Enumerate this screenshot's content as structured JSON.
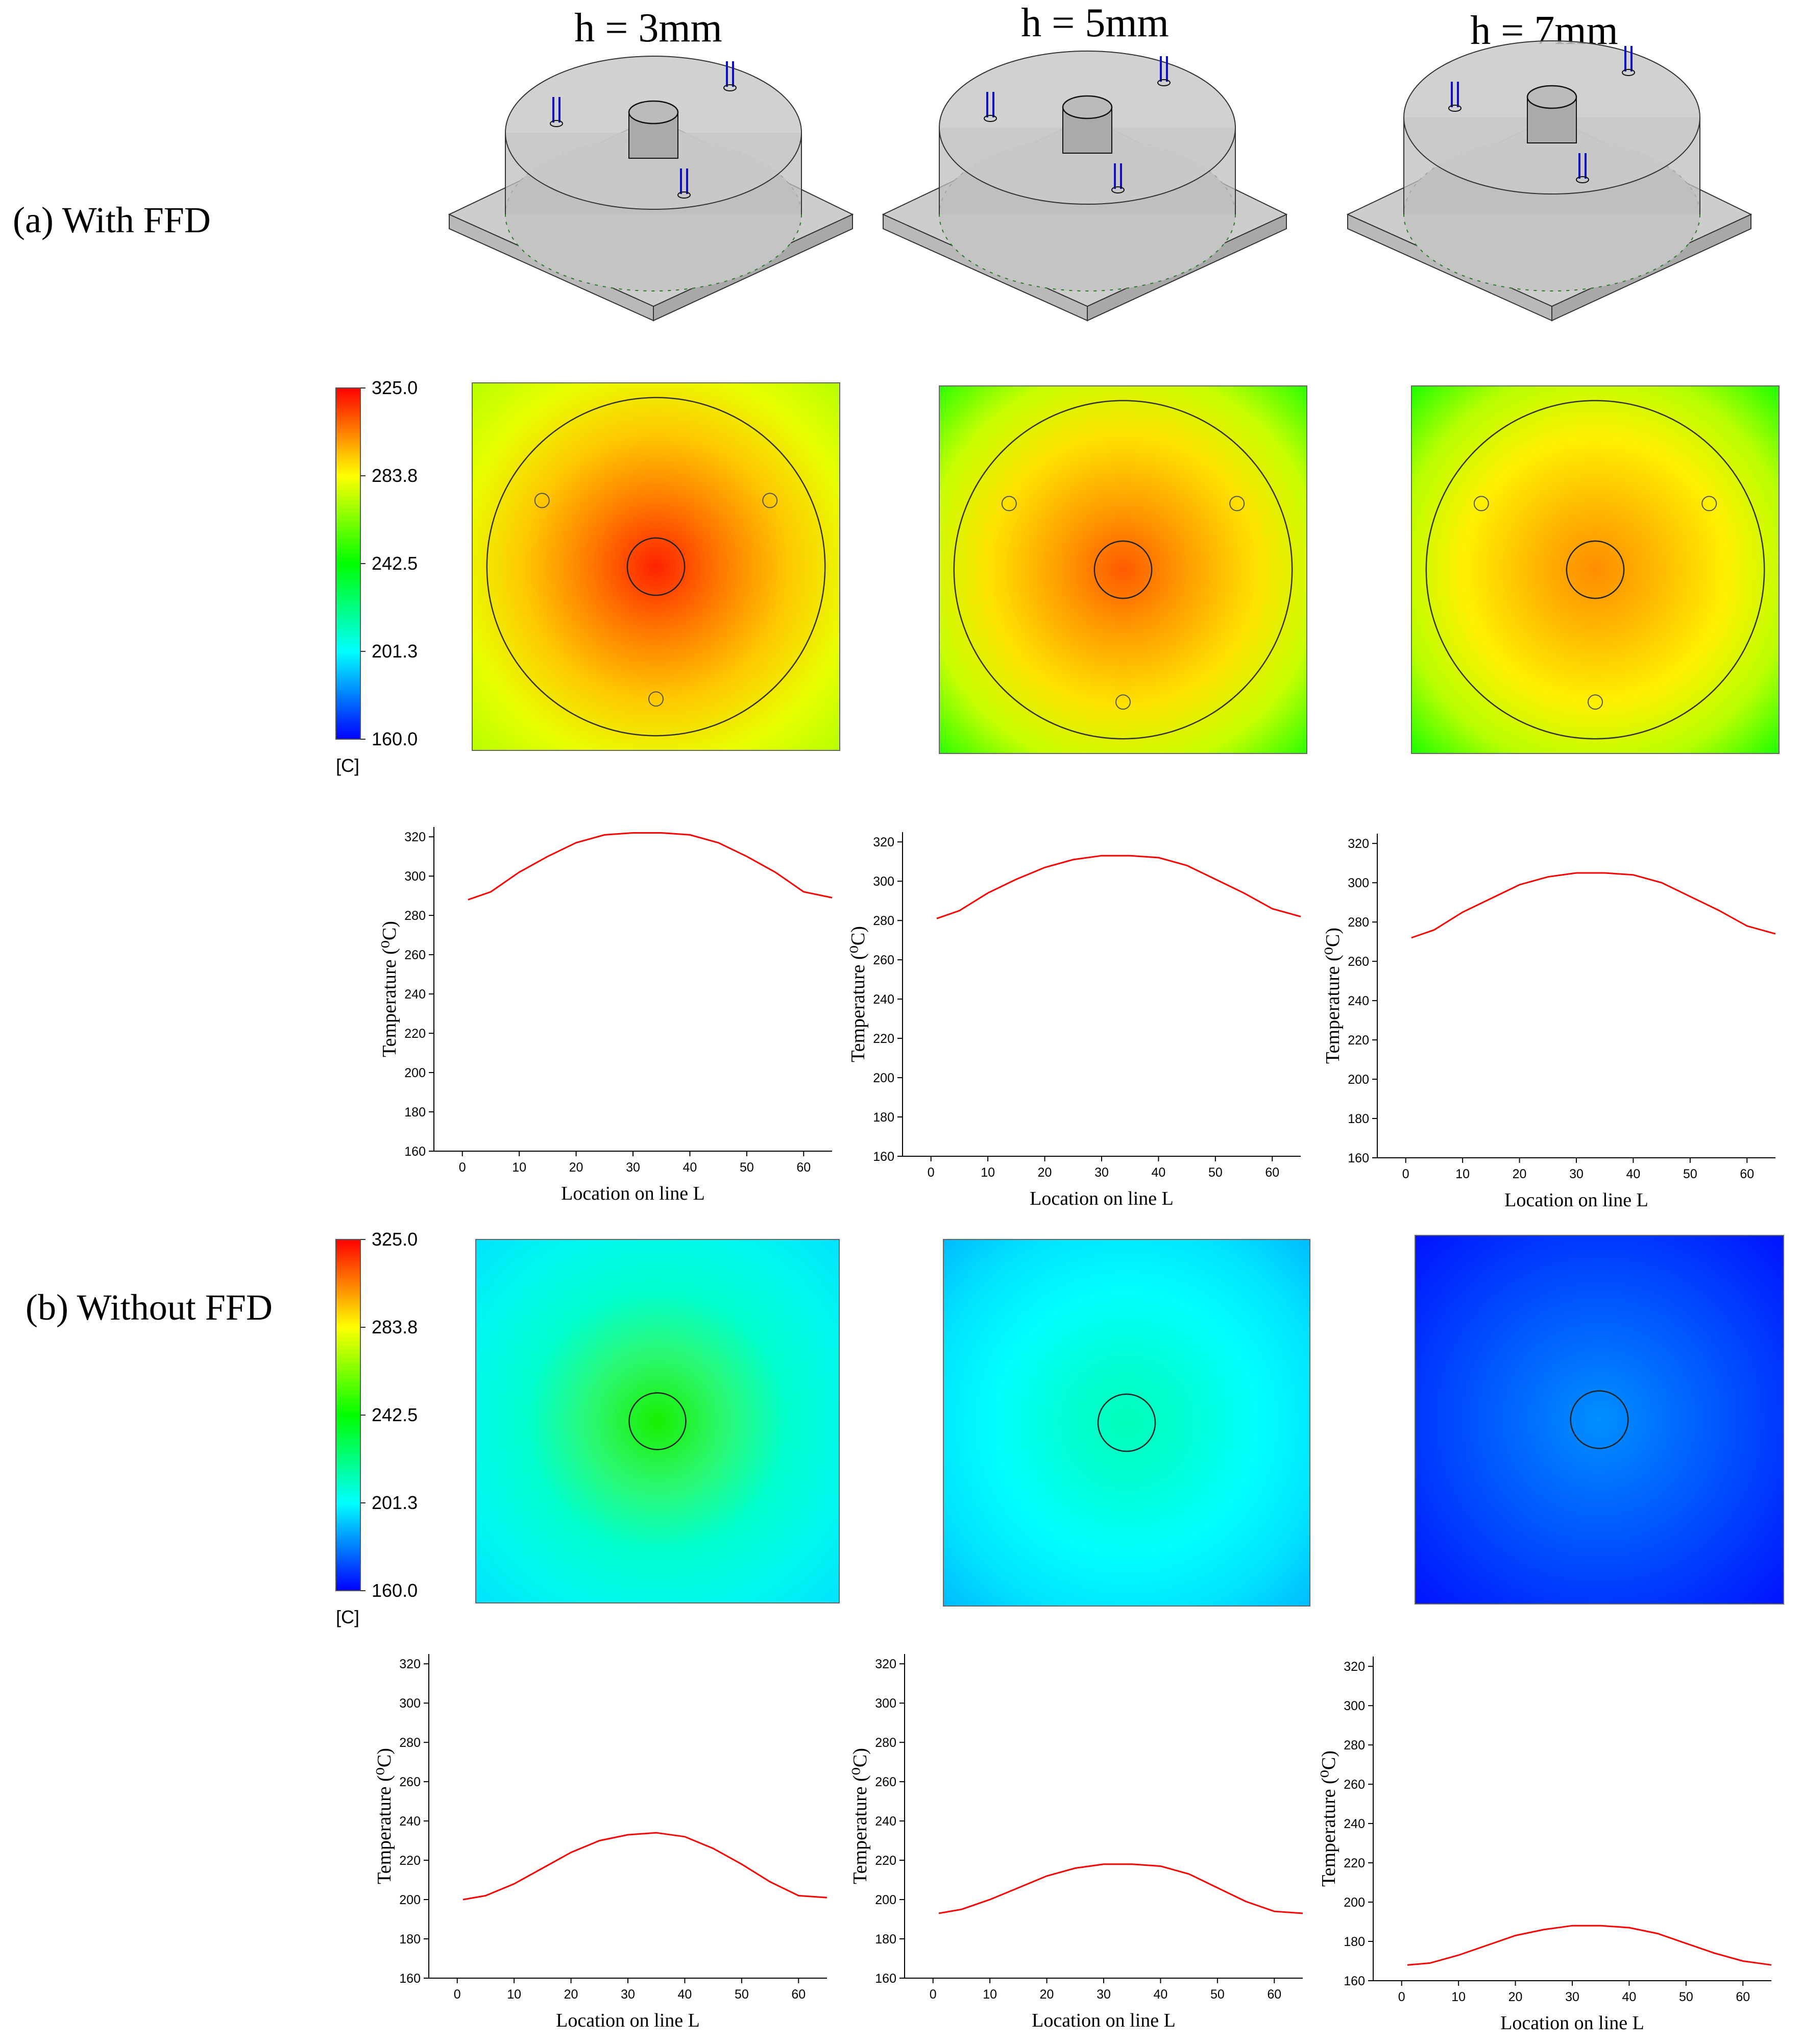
{
  "headers": {
    "col1": "h = 3mm",
    "col2": "h = 5mm",
    "col3": "h = 7mm",
    "row_a": "(a) With FFD",
    "row_b": "(b) Without FFD"
  },
  "colorbar": {
    "ticks": [
      "325.0",
      "283.8",
      "242.5",
      "201.3",
      "160.0"
    ],
    "unit": "[C]",
    "range": [
      160.0,
      325.0
    ]
  },
  "chart_data": [
    {
      "type": "line",
      "group": "With FFD",
      "h": "3mm",
      "xlabel": "Location on line L",
      "ylabel": "Temperature (⁰C)",
      "xlim": [
        -5,
        65
      ],
      "ylim": [
        160,
        325
      ],
      "xticks": [
        "0",
        "10",
        "20",
        "30",
        "40",
        "50",
        "60"
      ],
      "yticks": [
        "160",
        "180",
        "200",
        "220",
        "240",
        "260",
        "280",
        "300",
        "320"
      ],
      "x": [
        1,
        5,
        10,
        15,
        20,
        25,
        30,
        35,
        40,
        45,
        50,
        55,
        60,
        65
      ],
      "y": [
        288,
        292,
        302,
        310,
        317,
        321,
        322,
        322,
        321,
        317,
        310,
        302,
        292,
        289
      ],
      "color": "#ff0000"
    },
    {
      "type": "line",
      "group": "With FFD",
      "h": "5mm",
      "xlabel": "Location on line L",
      "ylabel": "Temperature (⁰C)",
      "xlim": [
        -5,
        65
      ],
      "ylim": [
        160,
        325
      ],
      "xticks": [
        "0",
        "10",
        "20",
        "30",
        "40",
        "50",
        "60"
      ],
      "yticks": [
        "160",
        "180",
        "200",
        "220",
        "240",
        "260",
        "280",
        "300",
        "320"
      ],
      "x": [
        1,
        5,
        10,
        15,
        20,
        25,
        30,
        35,
        40,
        45,
        50,
        55,
        60,
        65
      ],
      "y": [
        281,
        285,
        294,
        301,
        307,
        311,
        313,
        313,
        312,
        308,
        301,
        294,
        286,
        282
      ],
      "color": "#ff0000"
    },
    {
      "type": "line",
      "group": "With FFD",
      "h": "7mm",
      "xlabel": "Location on line L",
      "ylabel": "Temperature (⁰C)",
      "xlim": [
        -5,
        65
      ],
      "ylim": [
        160,
        325
      ],
      "xticks": [
        "0",
        "10",
        "20",
        "30",
        "40",
        "50",
        "60"
      ],
      "yticks": [
        "160",
        "180",
        "200",
        "220",
        "240",
        "260",
        "280",
        "300",
        "320"
      ],
      "x": [
        1,
        5,
        10,
        15,
        20,
        25,
        30,
        35,
        40,
        45,
        50,
        55,
        60,
        65
      ],
      "y": [
        272,
        276,
        285,
        292,
        299,
        303,
        305,
        305,
        304,
        300,
        293,
        286,
        278,
        274
      ],
      "color": "#ff0000"
    },
    {
      "type": "line",
      "group": "Without FFD",
      "h": "3mm",
      "xlabel": "Location on line L",
      "ylabel": "Temperature (⁰C)",
      "xlim": [
        -5,
        65
      ],
      "ylim": [
        160,
        325
      ],
      "xticks": [
        "0",
        "10",
        "20",
        "30",
        "40",
        "50",
        "60"
      ],
      "yticks": [
        "160",
        "180",
        "200",
        "220",
        "240",
        "260",
        "280",
        "300",
        "320"
      ],
      "x": [
        1,
        5,
        10,
        15,
        20,
        25,
        30,
        35,
        40,
        45,
        50,
        55,
        60,
        65
      ],
      "y": [
        200,
        202,
        208,
        216,
        224,
        230,
        233,
        234,
        232,
        226,
        218,
        209,
        202,
        201
      ],
      "color": "#ff0000"
    },
    {
      "type": "line",
      "group": "Without FFD",
      "h": "5mm",
      "xlabel": "Location on line L",
      "ylabel": "Temperature (⁰C)",
      "xlim": [
        -5,
        65
      ],
      "ylim": [
        160,
        325
      ],
      "xticks": [
        "0",
        "10",
        "20",
        "30",
        "40",
        "50",
        "60"
      ],
      "yticks": [
        "160",
        "180",
        "200",
        "220",
        "240",
        "260",
        "280",
        "300",
        "320"
      ],
      "x": [
        1,
        5,
        10,
        15,
        20,
        25,
        30,
        35,
        40,
        45,
        50,
        55,
        60,
        65
      ],
      "y": [
        193,
        195,
        200,
        206,
        212,
        216,
        218,
        218,
        217,
        213,
        206,
        199,
        194,
        193
      ],
      "color": "#ff0000"
    },
    {
      "type": "line",
      "group": "Without FFD",
      "h": "7mm",
      "xlabel": "Location on line L",
      "ylabel": "Temperature (⁰C)",
      "xlim": [
        -5,
        65
      ],
      "ylim": [
        160,
        325
      ],
      "xticks": [
        "0",
        "10",
        "20",
        "30",
        "40",
        "50",
        "60"
      ],
      "yticks": [
        "160",
        "180",
        "200",
        "220",
        "240",
        "260",
        "280",
        "300",
        "320"
      ],
      "x": [
        1,
        5,
        10,
        15,
        20,
        25,
        30,
        35,
        40,
        45,
        50,
        55,
        60,
        65
      ],
      "y": [
        168,
        169,
        173,
        178,
        183,
        186,
        188,
        188,
        187,
        184,
        179,
        174,
        170,
        168
      ],
      "color": "#ff0000"
    }
  ],
  "heatmaps": [
    {
      "group": "With FFD",
      "h": "3mm",
      "center_temp": 322,
      "edge_temp": 285,
      "corner_temp": 260,
      "colors": [
        "#ff2200",
        "#ff7a00",
        "#ffc800",
        "#e8ff00",
        "#b2ff00"
      ]
    },
    {
      "group": "With FFD",
      "h": "5mm",
      "center_temp": 313,
      "edge_temp": 280,
      "corner_temp": 245,
      "colors": [
        "#ff5a00",
        "#ffa000",
        "#ffe000",
        "#c8ff00",
        "#20ff00"
      ]
    },
    {
      "group": "With FFD",
      "h": "7mm",
      "center_temp": 305,
      "edge_temp": 272,
      "corner_temp": 242,
      "colors": [
        "#ff8c00",
        "#ffbc00",
        "#fff000",
        "#b8ff00",
        "#10ff00"
      ]
    },
    {
      "group": "Without FFD",
      "h": "3mm",
      "center_temp": 234,
      "edge_temp": 205,
      "corner_temp": 200,
      "colors": [
        "#18f000",
        "#2cf870",
        "#00ffd0",
        "#00f8f0",
        "#00e0ff"
      ]
    },
    {
      "group": "Without FFD",
      "h": "5mm",
      "center_temp": 218,
      "edge_temp": 200,
      "corner_temp": 195,
      "colors": [
        "#00ffb8",
        "#00ffd8",
        "#00ffff",
        "#00e4ff",
        "#00b8ff"
      ]
    },
    {
      "group": "Without FFD",
      "h": "7mm",
      "center_temp": 188,
      "edge_temp": 175,
      "corner_temp": 165,
      "colors": [
        "#0090ff",
        "#0070ff",
        "#0050ff",
        "#0030ff",
        "#0010ff"
      ]
    }
  ]
}
